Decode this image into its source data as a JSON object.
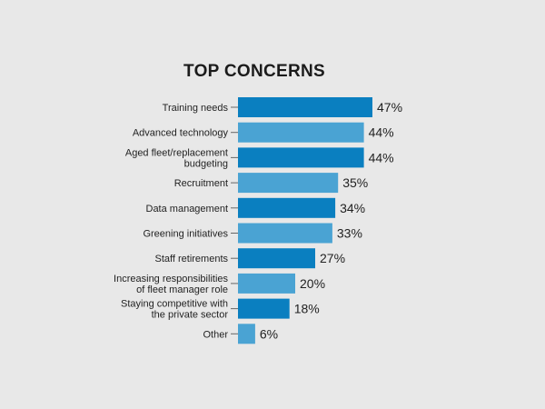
{
  "chart_data": {
    "type": "bar",
    "orientation": "horizontal",
    "title": "TOP CONCERNS",
    "xlabel": "",
    "ylabel": "",
    "xlim": [
      0,
      50
    ],
    "grid": false,
    "categories": [
      "Training needs",
      "Advanced technology",
      "Aged fleet/replacement budgeting",
      "Recruitment",
      "Data management",
      "Greening initiatives",
      "Staff retirements",
      "Increasing responsibilities of fleet manager role",
      "Staying competitive with the private sector",
      "Other"
    ],
    "category_lines": [
      [
        "Training needs"
      ],
      [
        "Advanced technology"
      ],
      [
        "Aged fleet/replacement",
        "budgeting"
      ],
      [
        "Recruitment"
      ],
      [
        "Data management"
      ],
      [
        "Greening initiatives"
      ],
      [
        "Staff retirements"
      ],
      [
        "Increasing responsibilities",
        "of fleet manager role"
      ],
      [
        "Staying competitive with",
        "the private sector"
      ],
      [
        "Other"
      ]
    ],
    "values": [
      47,
      44,
      44,
      35,
      34,
      33,
      27,
      20,
      18,
      6
    ],
    "value_labels": [
      "47%",
      "44%",
      "44%",
      "35%",
      "34%",
      "33%",
      "27%",
      "20%",
      "18%",
      "6%"
    ],
    "colors": {
      "bar_dark": "#0a7fc0",
      "bar_light": "#4aa3d3",
      "tick": "#666666"
    }
  }
}
